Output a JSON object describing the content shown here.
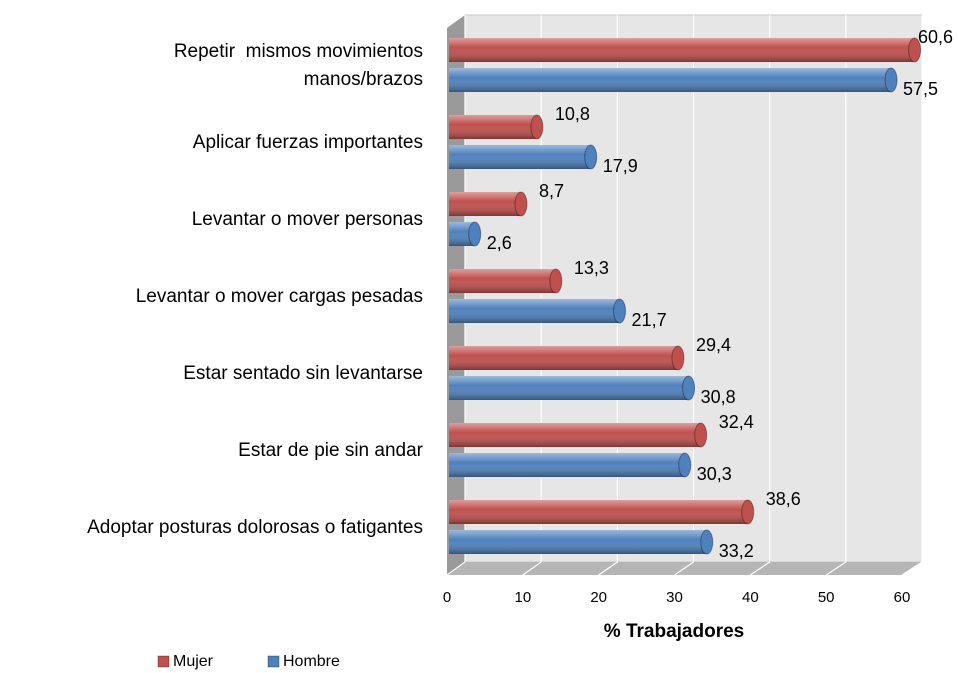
{
  "chart_data": {
    "type": "hbar",
    "categories": [
      "Repetir  mismos movimientos\nmanos/brazos",
      "Aplicar fuerzas importantes",
      "Levantar o mover personas",
      "Levantar o mover cargas pesadas",
      "Estar sentado sin levantarse",
      "Estar de pie sin andar",
      "Adoptar posturas dolorosas o fatigantes"
    ],
    "series": [
      {
        "name": "Mujer",
        "color": "#c0504d",
        "values": [
          60.6,
          10.8,
          8.7,
          13.3,
          29.4,
          32.4,
          38.6
        ],
        "value_labels": [
          "60,6",
          "10,8",
          "8,7",
          "13,3",
          "29,4",
          "32,4",
          "38,6"
        ]
      },
      {
        "name": "Hombre",
        "color": "#4f81bd",
        "values": [
          57.5,
          17.9,
          2.6,
          21.7,
          30.8,
          30.3,
          33.2
        ],
        "value_labels": [
          "57,5",
          "17,9",
          "2,6",
          "21,7",
          "30,8",
          "30,3",
          "33,2"
        ]
      }
    ],
    "xlabel": "% Trabajadores",
    "xlim": [
      0,
      60
    ],
    "xticks": [
      0,
      10,
      20,
      30,
      40,
      50,
      60
    ],
    "grid": true,
    "legend": "bottom-left"
  }
}
